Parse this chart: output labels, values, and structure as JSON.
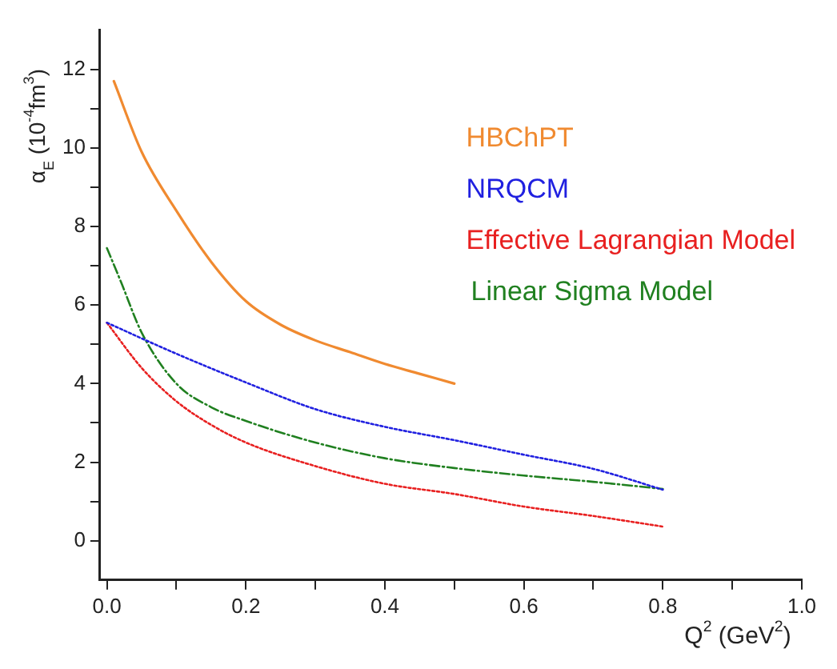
{
  "chart_data": {
    "type": "line",
    "xlabel": "Q$^{2}$ (GeV$^{2}$)",
    "ylabel": "α$_{E}$ (10$^{-4}$fm$^{3}$)",
    "xlim": [
      -0.01,
      1.0
    ],
    "xticks": [
      {
        "value": 0,
        "label": "0.0"
      },
      {
        "value": 0.1,
        "label": null
      },
      {
        "value": 0.2,
        "label": "0.2"
      },
      {
        "value": 0.3,
        "label": null
      },
      {
        "value": 0.4,
        "label": "0.4"
      },
      {
        "value": 0.5,
        "label": null
      },
      {
        "value": 0.6,
        "label": "0.6"
      },
      {
        "value": 0.7,
        "label": null
      },
      {
        "value": 0.8,
        "label": "0.8"
      },
      {
        "value": 0.9,
        "label": null
      },
      {
        "value": 1.0,
        "label": "1.0"
      }
    ],
    "ylim": [
      -1,
      13
    ],
    "yticks": [
      0,
      {
        "value": 1,
        "label": null
      },
      2,
      {
        "value": 3,
        "label": null
      },
      4,
      {
        "value": 5,
        "label": null
      },
      6,
      {
        "value": 7,
        "label": null
      },
      8,
      {
        "value": 9,
        "label": null
      },
      10,
      {
        "value": 11,
        "label": null
      },
      12
    ],
    "grid": false,
    "legend": "top right",
    "marker": "none",
    "series": [
      {
        "name": "HBChPT",
        "color": "#f08a30",
        "line_style": "solid",
        "x": [
          0.01,
          0.05,
          0.1,
          0.15,
          0.2,
          0.25,
          0.3,
          0.35,
          0.4,
          0.45,
          0.5
        ],
        "values": [
          11.7,
          9.9,
          8.4,
          7.1,
          6.1,
          5.5,
          5.1,
          4.8,
          4.5,
          4.25,
          4.0
        ]
      },
      {
        "name": "NRQCM",
        "color": "#2020e0",
        "line_style": "dotted",
        "x": [
          0,
          0.1,
          0.2,
          0.3,
          0.4,
          0.5,
          0.6,
          0.7,
          0.8
        ],
        "values": [
          5.55,
          4.76,
          4.03,
          3.35,
          2.9,
          2.56,
          2.19,
          1.83,
          1.3
        ]
      },
      {
        "name": "Effective Lagrangian Model",
        "color": "#e82020",
        "line_style": "dotted",
        "x": [
          0,
          0.05,
          0.1,
          0.15,
          0.2,
          0.3,
          0.4,
          0.5,
          0.6,
          0.7,
          0.8
        ],
        "values": [
          5.55,
          4.4,
          3.55,
          2.95,
          2.5,
          1.9,
          1.45,
          1.19,
          0.87,
          0.63,
          0.36
        ]
      },
      {
        "name": "Linear Sigma Model",
        "color": "#208020",
        "line_style": "dashed",
        "x": [
          0,
          0.02,
          0.05,
          0.1,
          0.15,
          0.2,
          0.3,
          0.4,
          0.5,
          0.6,
          0.7,
          0.8
        ],
        "values": [
          7.45,
          6.6,
          5.3,
          4.0,
          3.4,
          3.05,
          2.5,
          2.1,
          1.85,
          1.66,
          1.5,
          1.32
        ]
      }
    ]
  }
}
